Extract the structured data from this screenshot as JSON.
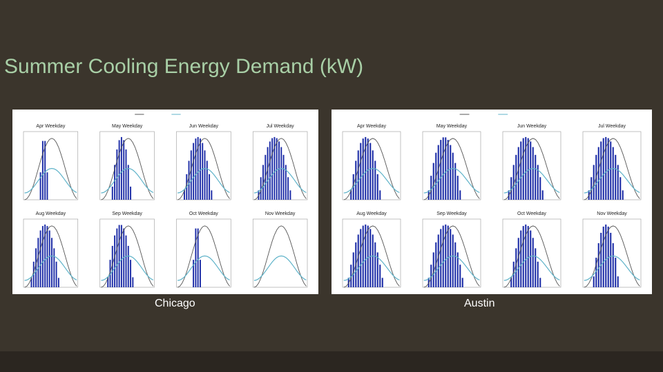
{
  "slide": {
    "title": "Summer Cooling Energy Demand (kW)",
    "colors": {
      "background": "#3b352c",
      "title": "#a8cfa6",
      "bars": "#1f2fa8",
      "line_dark": "#555555",
      "line_light": "#5fb3c9"
    }
  },
  "chicago": {
    "caption": "Chicago",
    "chart_data": {
      "type": "bar",
      "grid": "3x4 small multiples",
      "panels": [
        {
          "title": "Apr Weekday",
          "peak": 3.0,
          "bars_from": 7,
          "bars_to": 10
        },
        {
          "title": "May Weekday",
          "peak": 16,
          "bars_from": 5,
          "bars_to": 13
        },
        {
          "title": "Jun Weekday",
          "peak": 24,
          "bars_from": 3,
          "bars_to": 15
        },
        {
          "title": "Jul Weekday",
          "peak": 24,
          "bars_from": 2,
          "bars_to": 16
        },
        {
          "title": "Aug Weekday",
          "peak": 21,
          "bars_from": 3,
          "bars_to": 15
        },
        {
          "title": "Sep Weekday",
          "peak": 20,
          "bars_from": 3,
          "bars_to": 14
        },
        {
          "title": "Oct Weekday",
          "peak": 3.5,
          "bars_from": 7,
          "bars_to": 10
        },
        {
          "title": "Nov Weekday",
          "peak": 1,
          "bars_from": 0,
          "bars_to": 0
        }
      ]
    }
  },
  "austin": {
    "caption": "Austin",
    "chart_data": {
      "type": "bar",
      "grid": "3x4 small multiples",
      "panels": [
        {
          "title": "Apr Weekday",
          "peak": 30,
          "bars_from": 3,
          "bars_to": 15
        },
        {
          "title": "May Weekday",
          "peak": 25,
          "bars_from": 2,
          "bars_to": 15
        },
        {
          "title": "Jun Weekday",
          "peak": 25,
          "bars_from": 2,
          "bars_to": 16
        },
        {
          "title": "Jul Weekday",
          "peak": 25,
          "bars_from": 2,
          "bars_to": 16
        },
        {
          "title": "Aug Weekday",
          "peak": 25,
          "bars_from": 2,
          "bars_to": 16
        },
        {
          "title": "Sep Weekday",
          "peak": 25,
          "bars_from": 2,
          "bars_to": 16
        },
        {
          "title": "Oct Weekday",
          "peak": 20,
          "bars_from": 3,
          "bars_to": 15
        },
        {
          "title": "Nov Weekday",
          "peak": 14,
          "bars_from": 4,
          "bars_to": 14
        }
      ]
    }
  }
}
